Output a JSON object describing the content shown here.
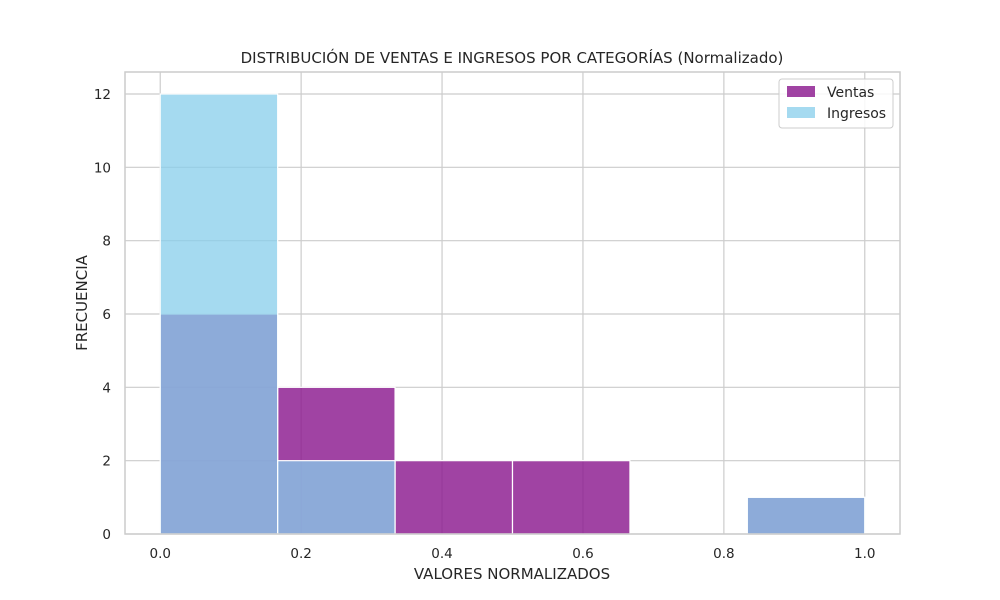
{
  "chart_data": {
    "type": "bar",
    "subtype": "overlaid-histogram",
    "title": "DISTRIBUCIÓN DE VENTAS E INGRESOS POR CATEGORÍAS (Normalizado)",
    "xlabel": "VALORES NORMALIZADOS",
    "ylabel": "FRECUENCIA",
    "bin_edges": [
      0.0,
      0.1667,
      0.3333,
      0.5,
      0.6667,
      0.8333,
      1.0
    ],
    "series": [
      {
        "name": "Ventas",
        "color": "#8B1A8F",
        "opacity": 0.82,
        "values": [
          6,
          4,
          2,
          2,
          0,
          1
        ]
      },
      {
        "name": "Ingresos",
        "color": "#87CEEB",
        "opacity": 0.75,
        "values": [
          12,
          2,
          0,
          0,
          0,
          1
        ]
      }
    ],
    "xlim": [
      -0.05,
      1.05
    ],
    "ylim": [
      0,
      12.6
    ],
    "xticks": [
      0.0,
      0.2,
      0.4,
      0.6,
      0.8,
      1.0
    ],
    "xtick_labels": [
      "0.0",
      "0.2",
      "0.4",
      "0.6",
      "0.8",
      "1.0"
    ],
    "yticks": [
      0,
      2,
      4,
      6,
      8,
      10,
      12
    ],
    "ytick_labels": [
      "0",
      "2",
      "4",
      "6",
      "8",
      "10",
      "12"
    ],
    "grid": true,
    "legend_position": "top-right",
    "bar_edge_color": "#ffffff"
  }
}
